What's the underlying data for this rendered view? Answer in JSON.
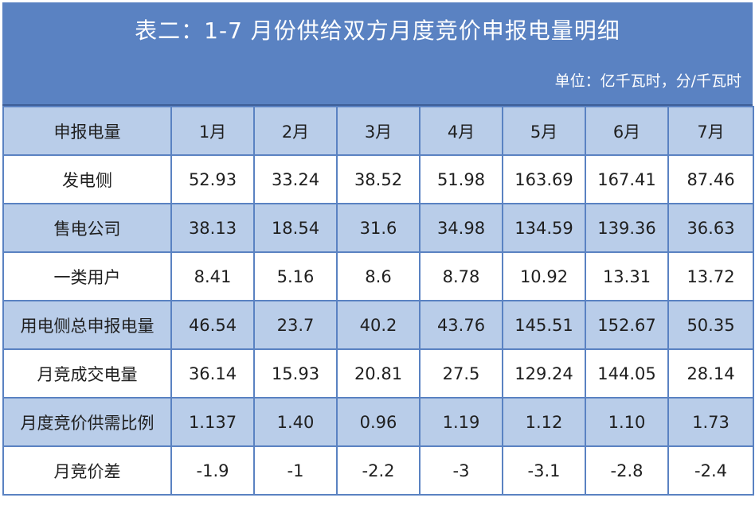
{
  "title": "表二：1-7 月份供给双方月度竞价申报电量明细",
  "unit": "单位：亿千瓦时，分/千瓦时",
  "header": [
    "申报电量",
    "1月",
    "2月",
    "3月",
    "4月",
    "5月",
    "6月",
    "7月"
  ],
  "rows": [
    {
      "label": "发电侧",
      "values": [
        "52.93",
        "33.24",
        "38.52",
        "51.98",
        "163.69",
        "167.41",
        "87.46"
      ]
    },
    {
      "label": "售电公司",
      "values": [
        "38.13",
        "18.54",
        "31.6",
        "34.98",
        "134.59",
        "139.36",
        "36.63"
      ]
    },
    {
      "label": "一类用户",
      "values": [
        "8.41",
        "5.16",
        "8.6",
        "8.78",
        "10.92",
        "13.31",
        "13.72"
      ]
    },
    {
      "label": "用电侧总申报电量",
      "values": [
        "46.54",
        "23.7",
        "40.2",
        "43.76",
        "145.51",
        "152.67",
        "50.35"
      ]
    },
    {
      "label": "月竞成交电量",
      "values": [
        "36.14",
        "15.93",
        "20.81",
        "27.5",
        "129.24",
        "144.05",
        "28.14"
      ]
    },
    {
      "label": "月度竞价供需比例",
      "values": [
        "1.137",
        "1.40",
        "0.96",
        "1.19",
        "1.12",
        "1.10",
        "1.73"
      ]
    },
    {
      "label": "月竞价差",
      "values": [
        "-1.9",
        "-1",
        "-2.2",
        "-3",
        "-3.1",
        "-2.8",
        "-2.4"
      ]
    }
  ],
  "colors": {
    "header_band": "#5a82c2",
    "shaded_row": "#b9cde9",
    "grid_line": "#5a82c2"
  }
}
